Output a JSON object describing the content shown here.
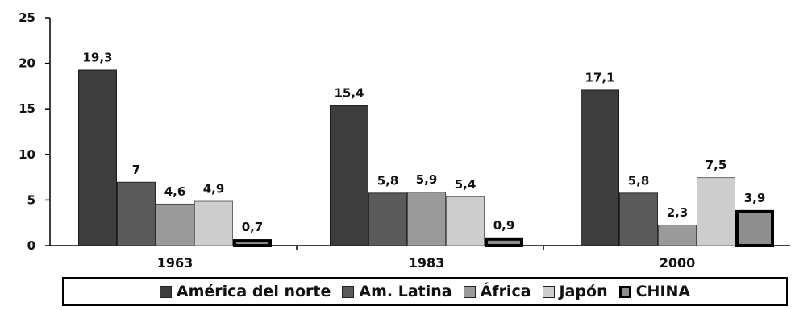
{
  "chart_data": {
    "type": "bar",
    "categories": [
      "1963",
      "1983",
      "2000"
    ],
    "series": [
      {
        "name": "América del norte",
        "values": [
          19.3,
          15.4,
          17.1
        ],
        "labels": [
          "19,3",
          "15,4",
          "17,1"
        ],
        "color": "#3d3d3d",
        "stroke": "#1a1a1a"
      },
      {
        "name": "Am. Latina",
        "values": [
          7,
          5.8,
          5.8
        ],
        "labels": [
          "7",
          "5,8",
          "5,8"
        ],
        "color": "#5a5a5a",
        "stroke": "#2a2a2a"
      },
      {
        "name": "África",
        "values": [
          4.6,
          5.9,
          2.3
        ],
        "labels": [
          "4,6",
          "5,9",
          "2,3"
        ],
        "color": "#9a9a9a",
        "stroke": "#4a4a4a"
      },
      {
        "name": "Japón",
        "values": [
          4.9,
          5.4,
          7.5
        ],
        "labels": [
          "4,9",
          "5,4",
          "7,5"
        ],
        "color": "#cdcdcd",
        "stroke": "#6a6a6a"
      },
      {
        "name": "CHINA",
        "values": [
          0.7,
          0.9,
          3.9
        ],
        "labels": [
          "0,7",
          "0,9",
          "3,9"
        ],
        "color": "#8e8e8e",
        "stroke": "#000000",
        "thick_border": true
      }
    ],
    "ylim": [
      0,
      25
    ],
    "yticks": [
      "0",
      "5",
      "10",
      "15",
      "20",
      "25"
    ],
    "ytick_values": [
      0,
      5,
      10,
      15,
      20,
      25
    ],
    "title": "",
    "xlabel": "",
    "ylabel": "",
    "grid": false,
    "legend_position": "bottom"
  }
}
